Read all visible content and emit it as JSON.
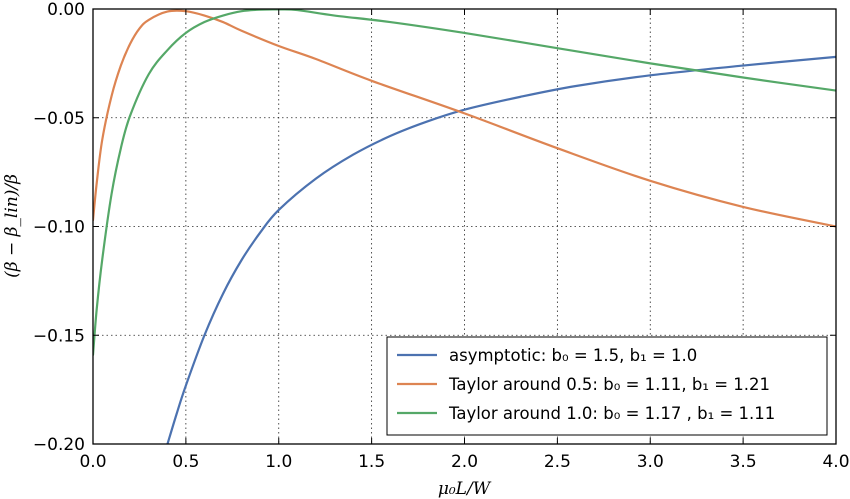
{
  "chart_data": {
    "type": "line",
    "xlabel": "μ₀L/W",
    "ylabel": "(β − β_lin)/β",
    "xlim": [
      0.0,
      4.0
    ],
    "ylim": [
      -0.2,
      0.0
    ],
    "xticks": [
      0.0,
      0.5,
      1.0,
      1.5,
      2.0,
      2.5,
      3.0,
      3.5,
      4.0
    ],
    "xtick_labels": [
      "0.0",
      "0.5",
      "1.0",
      "1.5",
      "2.0",
      "2.5",
      "3.0",
      "3.5",
      "4.0"
    ],
    "yticks": [
      0.0,
      -0.05,
      -0.1,
      -0.15,
      -0.2
    ],
    "ytick_labels": [
      "0.00",
      "−0.05",
      "−0.10",
      "−0.15",
      "−0.20"
    ],
    "grid": true,
    "legend_position": "lower-right",
    "series": [
      {
        "name": "asymptotic: b₀ = 1.5, b₁ = 1.0",
        "color": "#4c72b0",
        "x": [
          0.4,
          0.45,
          0.5,
          0.6,
          0.7,
          0.8,
          0.9,
          1.0,
          1.2,
          1.4,
          1.6,
          1.8,
          2.0,
          2.3,
          2.6,
          3.0,
          3.5,
          4.0
        ],
        "y": [
          -0.2003,
          -0.1862,
          -0.1731,
          -0.15,
          -0.1309,
          -0.1154,
          -0.1028,
          -0.0924,
          -0.078,
          -0.067,
          -0.0584,
          -0.0517,
          -0.0463,
          -0.0404,
          -0.0354,
          -0.0305,
          -0.026,
          -0.022
        ]
      },
      {
        "name": "Taylor around 0.5: b₀ = 1.11, b₁ = 1.21",
        "color": "#dd8452",
        "x": [
          0.0,
          0.02,
          0.05,
          0.1,
          0.15,
          0.2,
          0.25,
          0.3,
          0.4,
          0.5,
          0.6,
          0.7,
          0.8,
          1.0,
          1.2,
          1.5,
          2.0,
          2.5,
          3.0,
          3.5,
          4.0
        ],
        "y": [
          -0.097,
          -0.08,
          -0.06,
          -0.04,
          -0.026,
          -0.016,
          -0.009,
          -0.005,
          -0.0012,
          -0.001,
          -0.003,
          -0.006,
          -0.01,
          -0.017,
          -0.023,
          -0.033,
          -0.048,
          -0.064,
          -0.079,
          -0.091,
          -0.1
        ]
      },
      {
        "name": "Taylor around 1.0: b₀ = 1.17 , b₁ = 1.11",
        "color": "#55a868",
        "x": [
          0.0,
          0.02,
          0.05,
          0.1,
          0.15,
          0.2,
          0.3,
          0.4,
          0.5,
          0.6,
          0.7,
          0.8,
          0.9,
          1.0,
          1.1,
          1.3,
          1.6,
          2.0,
          2.5,
          3.0,
          3.5,
          4.0
        ],
        "y": [
          -0.159,
          -0.138,
          -0.115,
          -0.085,
          -0.064,
          -0.049,
          -0.03,
          -0.019,
          -0.011,
          -0.006,
          -0.003,
          -0.001,
          -0.0003,
          -0.0002,
          -0.0005,
          -0.003,
          -0.006,
          -0.011,
          -0.018,
          -0.025,
          -0.0315,
          -0.0375
        ]
      }
    ]
  }
}
